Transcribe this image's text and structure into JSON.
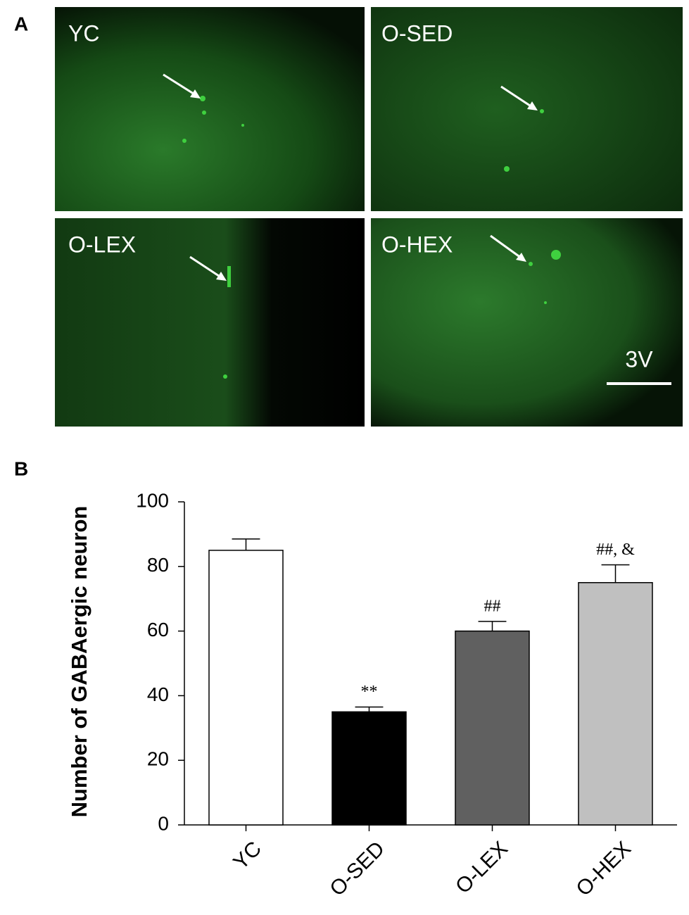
{
  "panels": [
    "A",
    "B"
  ],
  "micrographs": {
    "labels": [
      "YC",
      "O-SED",
      "O-LEX",
      "O-HEX"
    ],
    "scale_label": "3V"
  },
  "chart_data": {
    "type": "bar",
    "ylabel": "Number of GABAergic neuron",
    "categories": [
      "YC",
      "O-SED",
      "O-LEX",
      "O-HEX"
    ],
    "values": [
      85,
      35,
      60,
      75
    ],
    "errors": [
      3.5,
      1.5,
      3,
      5.5
    ],
    "colors": [
      "#ffffff",
      "#000000",
      "#606060",
      "#c0c0c0"
    ],
    "annotations": [
      null,
      "**",
      "##",
      "##, &"
    ],
    "ylim": [
      0,
      100
    ],
    "yticks": [
      0,
      20,
      40,
      60,
      80,
      100
    ]
  }
}
